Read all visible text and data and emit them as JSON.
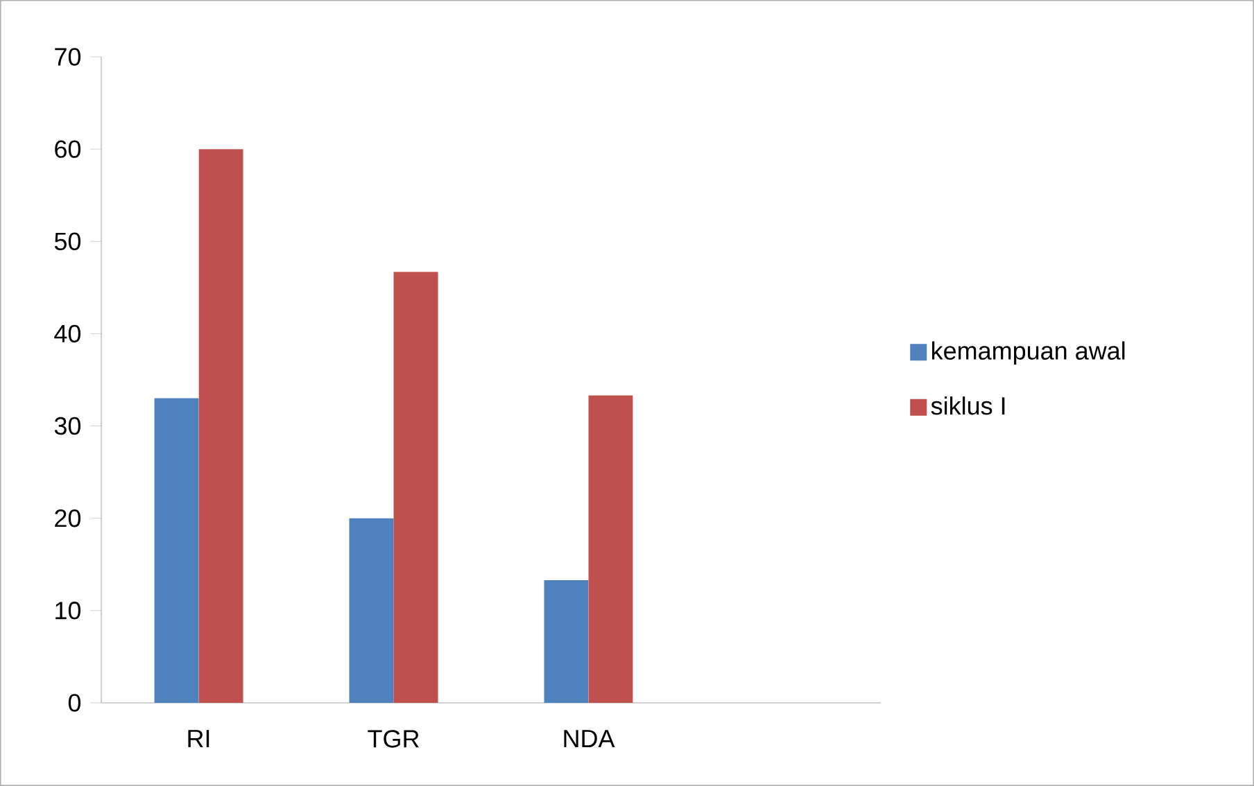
{
  "chart_data": {
    "type": "bar",
    "categories": [
      "RI",
      "TGR",
      "NDA",
      null
    ],
    "series": [
      {
        "name": "kemampuan awal",
        "color": "#4f81bd",
        "values": [
          33,
          20,
          13.3,
          null
        ]
      },
      {
        "name": "siklus I",
        "color": "#c0504d",
        "values": [
          60,
          46.7,
          33.3,
          null
        ]
      }
    ],
    "ylim": [
      0,
      70
    ],
    "yticks": [
      0,
      10,
      20,
      30,
      40,
      50,
      60,
      70
    ],
    "grid": false,
    "legend": "right"
  }
}
